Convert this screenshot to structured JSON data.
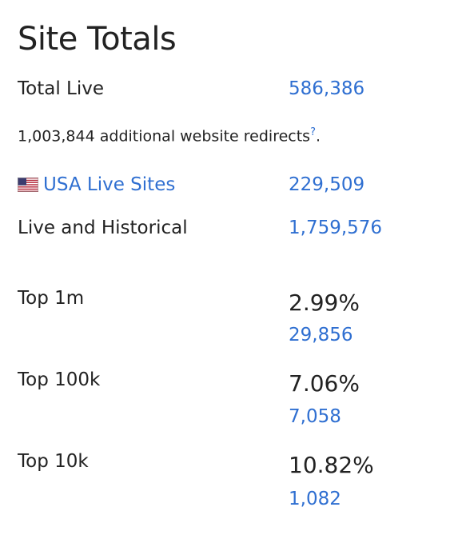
{
  "title": "Site Totals",
  "total_live": {
    "label": "Total Live",
    "value": "586,386"
  },
  "redirects_note": {
    "text": "1,003,844 additional website redirects",
    "help": "?",
    "suffix": "."
  },
  "usa_live": {
    "label": "USA Live Sites",
    "value": "229,509",
    "icon": "us-flag-icon"
  },
  "live_historical": {
    "label": "Live and Historical",
    "value": "1,759,576"
  },
  "tops": [
    {
      "label": "Top 1m",
      "percent": "2.99%",
      "count": "29,856"
    },
    {
      "label": "Top 100k",
      "percent": "7.06%",
      "count": "7,058"
    },
    {
      "label": "Top 10k",
      "percent": "10.82%",
      "count": "1,082"
    }
  ],
  "colors": {
    "link": "#2f6fd1",
    "text": "#222222"
  }
}
